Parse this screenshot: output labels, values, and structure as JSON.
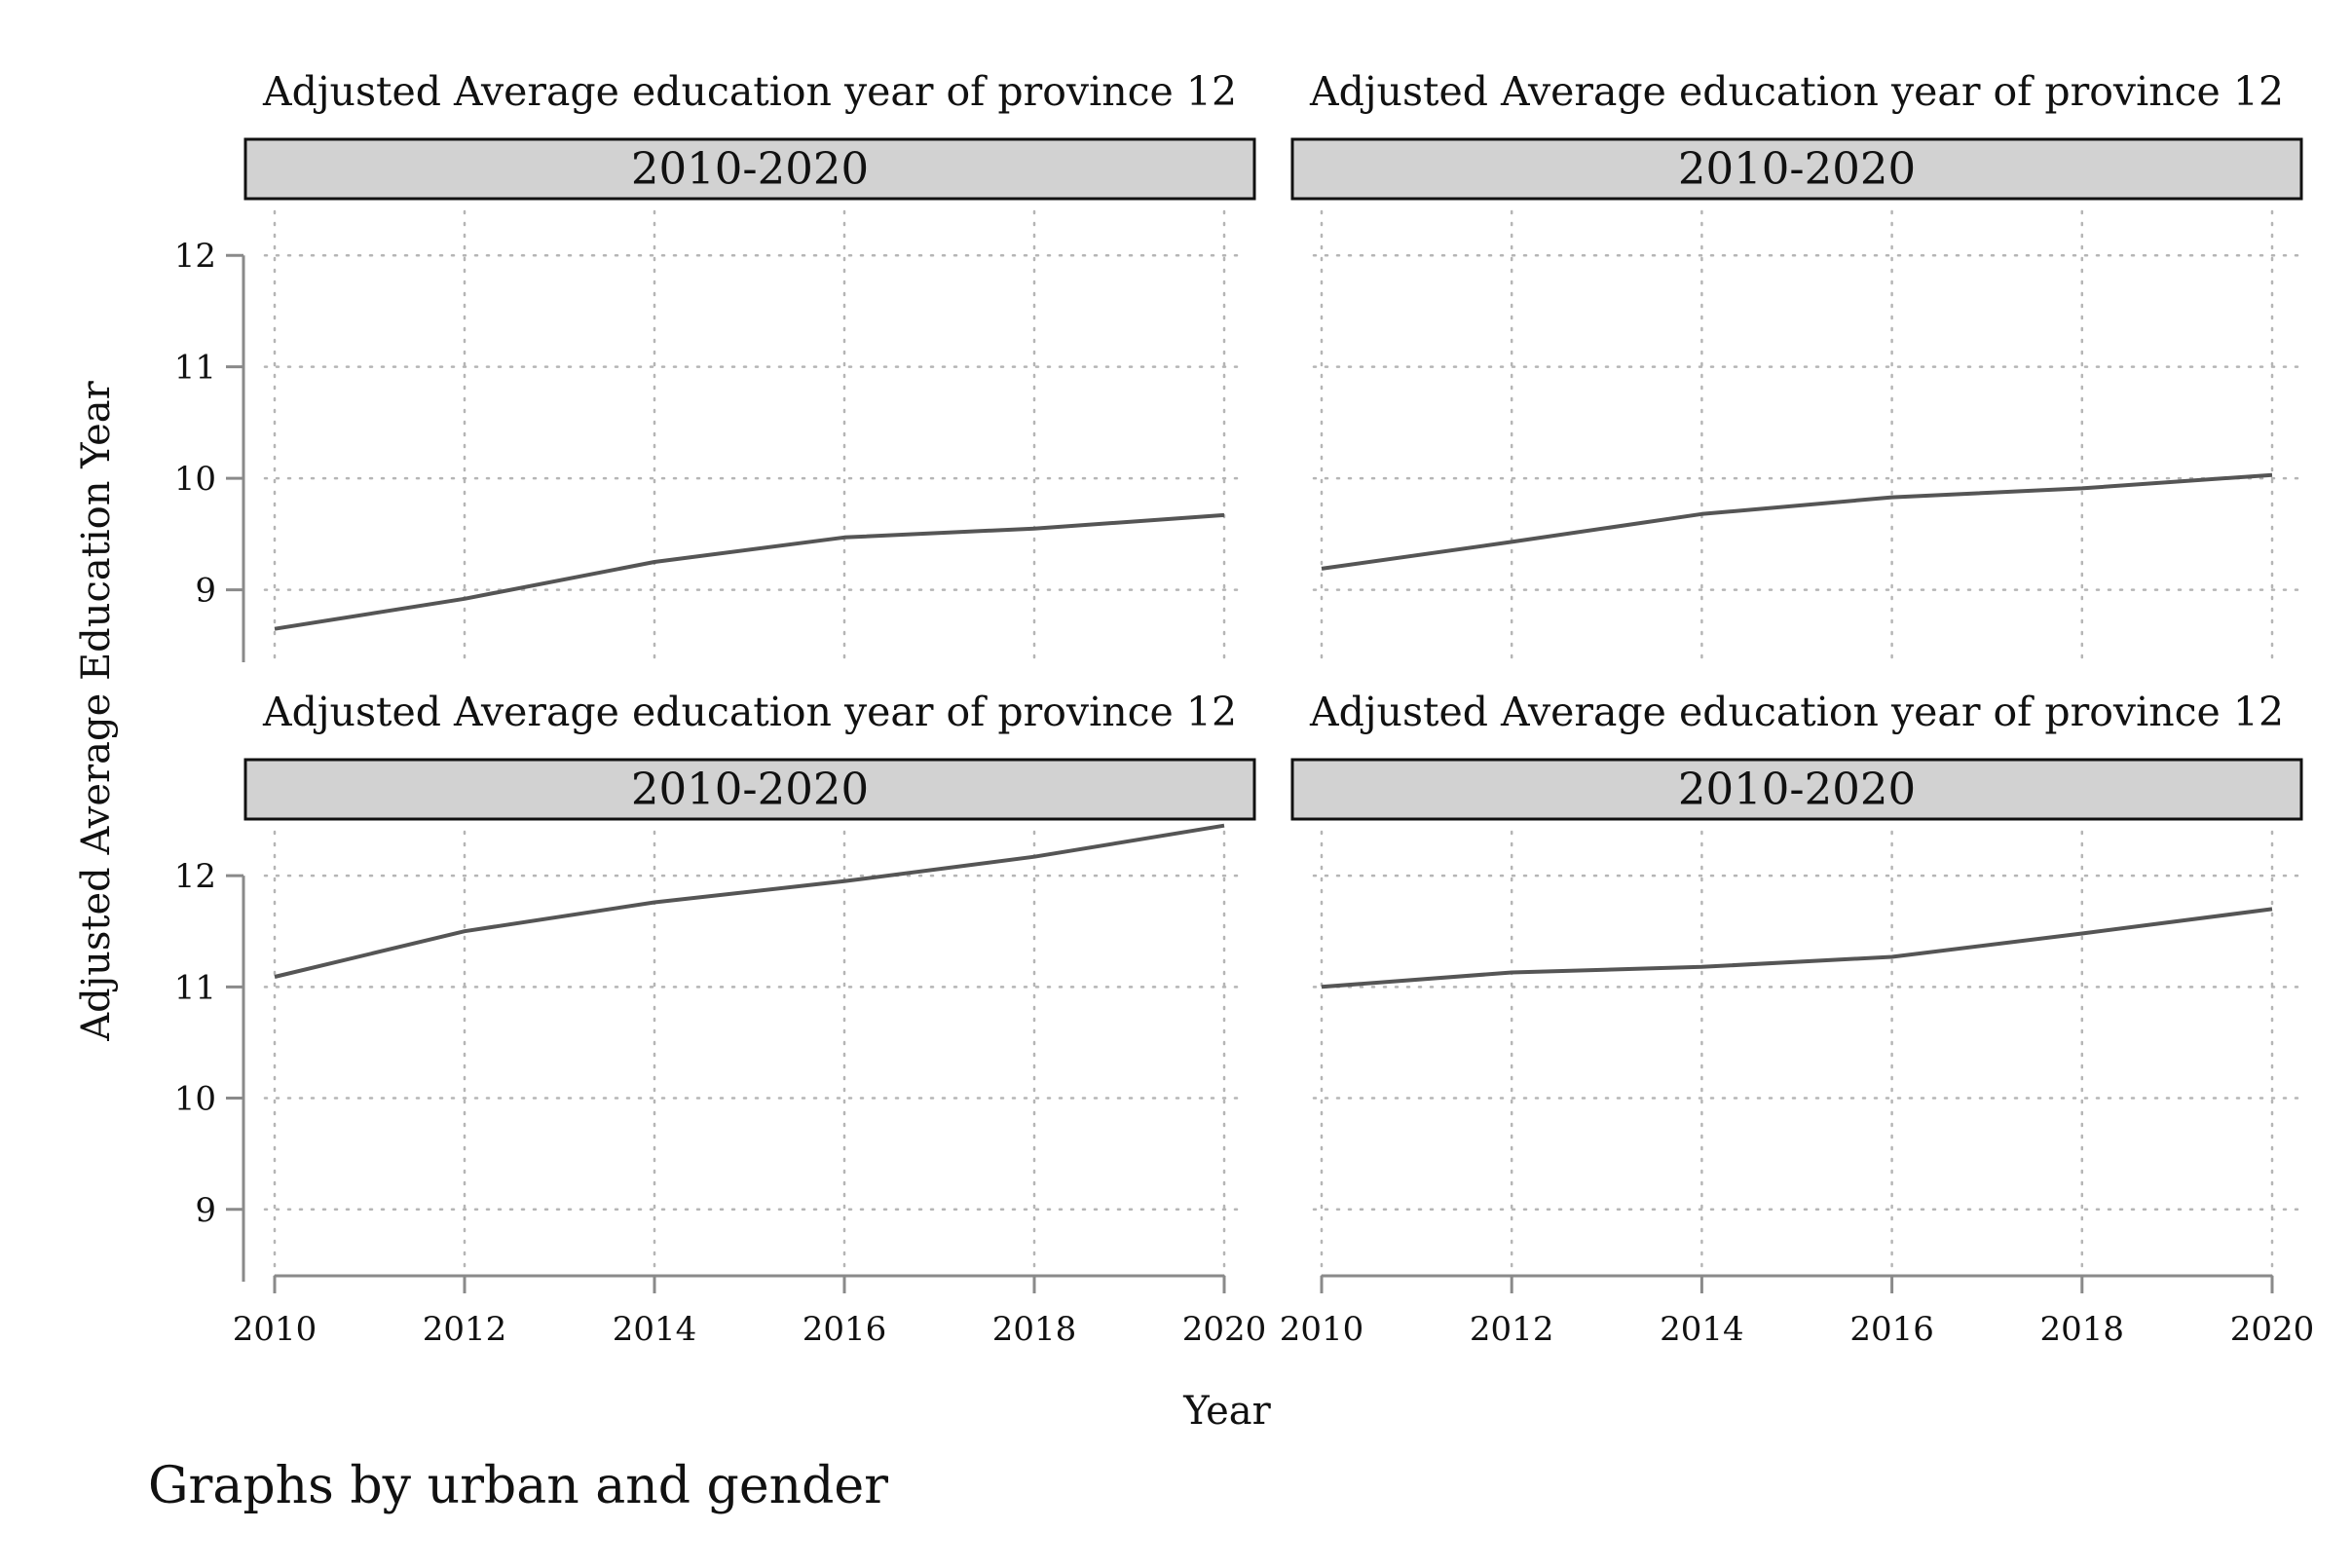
{
  "figure": {
    "ylabel": "Adjusted Average Education Year",
    "xlabel": "Year",
    "note": "Graphs by urban and gender"
  },
  "chart_data": [
    {
      "type": "line",
      "title": "Adjusted Average education year of province 12",
      "strip": "2010-2020",
      "x": [
        2010,
        2012,
        2014,
        2016,
        2018,
        2020
      ],
      "values": [
        8.65,
        8.92,
        9.25,
        9.47,
        9.55,
        9.67
      ],
      "xticks": [
        2010,
        2012,
        2014,
        2016,
        2018,
        2020
      ],
      "yticks": [
        9,
        10,
        11,
        12
      ],
      "xlim": [
        2010,
        2020
      ],
      "ylim": [
        8.35,
        12.5
      ],
      "grid": true
    },
    {
      "type": "line",
      "title": "Adjusted Average education year of province 12",
      "strip": "2010-2020",
      "x": [
        2010,
        2012,
        2014,
        2016,
        2018,
        2020
      ],
      "values": [
        9.19,
        9.43,
        9.68,
        9.83,
        9.91,
        10.03
      ],
      "xticks": [
        2010,
        2012,
        2014,
        2016,
        2018,
        2020
      ],
      "yticks": [
        9,
        10,
        11,
        12
      ],
      "xlim": [
        2010,
        2020
      ],
      "ylim": [
        8.35,
        12.5
      ],
      "grid": true
    },
    {
      "type": "line",
      "title": "Adjusted Average education year of province 12",
      "strip": "2010-2020",
      "x": [
        2010,
        2012,
        2014,
        2016,
        2018,
        2020
      ],
      "values": [
        11.09,
        11.5,
        11.76,
        11.95,
        12.17,
        12.45
      ],
      "xticks": [
        2010,
        2012,
        2014,
        2016,
        2018,
        2020
      ],
      "yticks": [
        9,
        10,
        11,
        12
      ],
      "xlim": [
        2010,
        2020
      ],
      "ylim": [
        8.35,
        12.5
      ],
      "grid": true
    },
    {
      "type": "line",
      "title": "Adjusted Average education year of province 12",
      "strip": "2010-2020",
      "x": [
        2010,
        2012,
        2014,
        2016,
        2018,
        2020
      ],
      "values": [
        11.0,
        11.13,
        11.18,
        11.27,
        11.48,
        11.7
      ],
      "xticks": [
        2010,
        2012,
        2014,
        2016,
        2018,
        2020
      ],
      "yticks": [
        9,
        10,
        11,
        12
      ],
      "xlim": [
        2010,
        2020
      ],
      "ylim": [
        8.35,
        12.5
      ],
      "grid": true
    }
  ]
}
